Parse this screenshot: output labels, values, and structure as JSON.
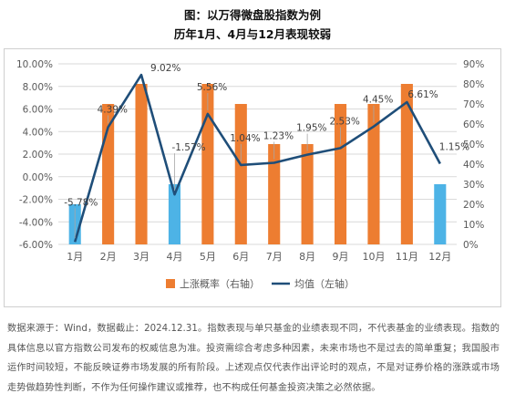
{
  "title_line1": "图：以万得微盘股指数为例",
  "title_line2": "历年1月、4月与12月表现较弱",
  "source_note": "数据来源于：Wind，数据截止：2024.12.31。指数表现与单只基金的业绩表现不同，不代表基金的业绩表现。指数的具体信息以官方指数公司发布的权威信息为准。投资需综合考虑多种因素，未来市场也不是过去的简单重复；我国股市运作时间较短，不能反映证券市场发展的所有阶段。上述观点仅代表作出评论时的观点，不是对证券价格的涨跌或市场走势做趋势性判断，不作为任何操作建议或推荐，也不构成任何基金投资决策之必然依据。",
  "colors": {
    "bar_orange": "#ED7D31",
    "bar_blue": "#4DB3E6",
    "line": "#1F4E79",
    "grid": "#D9D9D9",
    "axis_text": "#595959",
    "label_text": "#404040"
  },
  "chart_data": {
    "type": "bar+line",
    "categories": [
      "1月",
      "2月",
      "3月",
      "4月",
      "5月",
      "6月",
      "7月",
      "8月",
      "9月",
      "10月",
      "11月",
      "12月"
    ],
    "series": [
      {
        "name": "上涨概率（右轴）",
        "type": "bar",
        "axis": "right",
        "values": [
          20,
          70,
          80,
          30,
          80,
          70,
          50,
          50,
          70,
          70,
          80,
          30
        ],
        "highlighted_months": [
          "1月",
          "4月",
          "12月"
        ]
      },
      {
        "name": "均值（左轴）",
        "type": "line",
        "axis": "left",
        "values": [
          -5.78,
          4.39,
          9.02,
          -1.57,
          5.56,
          1.04,
          1.23,
          1.95,
          2.53,
          4.45,
          6.61,
          1.15
        ],
        "labels": [
          "-5.78%",
          "4.39%",
          "9.02%",
          "-1.57%",
          "5.56%",
          "1.04%",
          "1.23%",
          "1.95%",
          "2.53%",
          "4.45%",
          "6.61%",
          "1.15%"
        ]
      }
    ],
    "left_axis": {
      "min": -6,
      "max": 10,
      "step": 2,
      "tick_labels": [
        "-6.00%",
        "-4.00%",
        "-2.00%",
        "0.00%",
        "2.00%",
        "4.00%",
        "6.00%",
        "8.00%",
        "10.00%"
      ]
    },
    "right_axis": {
      "min": 0,
      "max": 90,
      "step": 10,
      "tick_labels": [
        "0%",
        "10%",
        "20%",
        "30%",
        "40%",
        "50%",
        "60%",
        "70%",
        "80%",
        "90%"
      ]
    },
    "grid": true,
    "legend_position": "bottom"
  }
}
